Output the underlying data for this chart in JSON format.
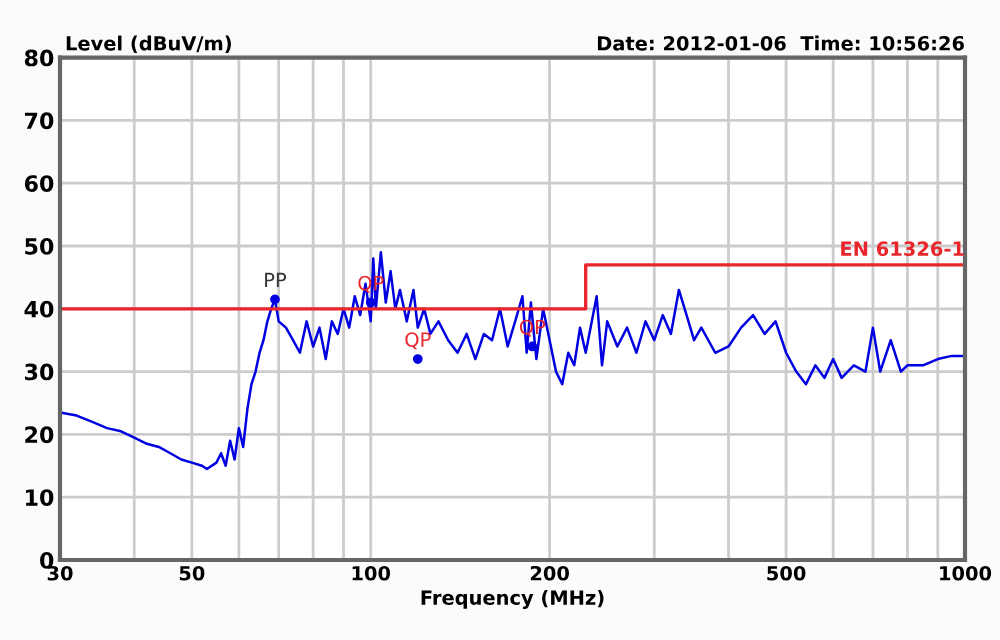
{
  "chart_data": {
    "type": "line",
    "ylabel": "Level (dBuV/m)",
    "xlabel": "Frequency (MHz)",
    "subtitle": "Date: 2012-01-06  Time: 10:56:26",
    "log": "x",
    "grid": true,
    "legend": false,
    "xlim": [
      30,
      1000
    ],
    "ylim": [
      0,
      80
    ],
    "xticks": [
      30,
      {
        "value": 40,
        "label": null
      },
      50,
      {
        "value": 60,
        "label": null
      },
      {
        "value": 70,
        "label": null
      },
      {
        "value": 80,
        "label": null
      },
      {
        "value": 90,
        "label": null
      },
      100,
      200,
      {
        "value": 300,
        "label": null
      },
      {
        "value": 400,
        "label": null
      },
      500,
      {
        "value": 600,
        "label": null
      },
      {
        "value": 700,
        "label": null
      },
      {
        "value": 800,
        "label": null
      },
      {
        "value": 900,
        "label": null
      },
      1000
    ],
    "yticks": [
      0,
      10,
      20,
      30,
      40,
      50,
      60,
      70,
      80
    ],
    "series": [
      {
        "color": "#0000e0",
        "x": [
          30,
          32,
          34,
          36,
          38,
          40,
          42,
          44,
          46,
          48,
          50,
          52,
          53,
          55,
          56,
          57,
          58,
          59,
          60,
          61,
          62,
          63,
          64,
          65,
          66,
          67,
          68,
          69,
          70,
          72,
          74,
          76,
          78,
          80,
          82,
          84,
          86,
          88,
          90,
          92,
          94,
          96,
          98,
          100,
          101,
          102,
          104,
          106,
          108,
          110,
          112,
          115,
          118,
          120,
          123,
          126,
          130,
          135,
          140,
          145,
          150,
          155,
          160,
          165,
          170,
          175,
          180,
          183,
          186,
          190,
          195,
          200,
          205,
          210,
          215,
          220,
          225,
          230,
          240,
          245,
          250,
          260,
          270,
          280,
          290,
          300,
          310,
          320,
          330,
          340,
          350,
          360,
          380,
          400,
          420,
          440,
          460,
          480,
          500,
          520,
          540,
          560,
          580,
          600,
          620,
          650,
          680,
          700,
          720,
          750,
          780,
          800,
          850,
          900,
          950,
          1000
        ],
        "values": [
          23.5,
          23,
          22,
          21,
          20.5,
          19.5,
          18.5,
          18,
          17,
          16,
          15.5,
          15,
          14.5,
          15.5,
          17,
          15,
          19,
          16,
          21,
          18,
          24,
          28,
          30,
          33,
          35,
          38,
          40,
          41.5,
          38,
          37,
          35,
          33,
          38,
          34,
          37,
          32,
          38,
          36,
          40,
          37,
          42,
          39,
          44,
          38,
          48,
          40,
          49,
          41,
          46,
          40,
          43,
          38,
          43,
          37,
          40,
          36,
          38,
          35,
          33,
          36,
          32,
          36,
          35,
          40,
          34,
          38,
          42,
          33,
          41,
          32,
          40,
          35,
          30,
          28,
          33,
          31,
          37,
          33,
          42,
          31,
          38,
          34,
          37,
          33,
          38,
          35,
          39,
          36,
          43,
          39,
          35,
          37,
          33,
          34,
          37,
          39,
          36,
          38,
          33,
          30,
          28,
          31,
          29,
          32,
          29,
          31,
          30,
          37,
          30,
          35,
          30,
          31,
          31,
          32,
          32.5,
          32.5
        ]
      },
      {
        "name": "EN 61326-1",
        "type": "step",
        "color": "#e8262b",
        "x": [
          30,
          230,
          1000
        ],
        "values": [
          40,
          47,
          47
        ]
      }
    ],
    "annotations": [
      {
        "text": "PP",
        "x": 69,
        "y": 41.5
      },
      {
        "text": "QP",
        "x": 100,
        "y": 41
      },
      {
        "text": "QP",
        "x": 120,
        "y": 32
      },
      {
        "text": "QP",
        "x": 187,
        "y": 34
      }
    ]
  }
}
